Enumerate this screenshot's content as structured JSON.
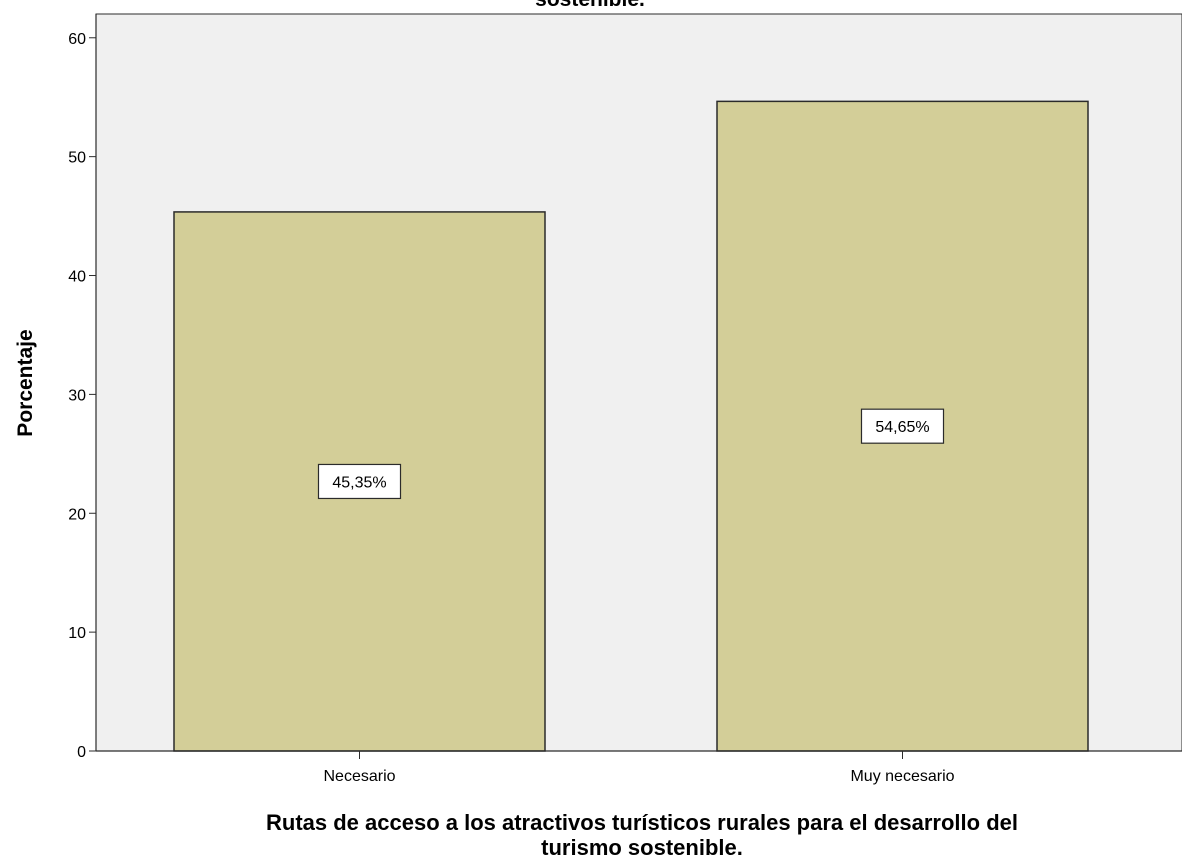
{
  "chart_data": {
    "type": "bar",
    "title": "sostenible.",
    "categories": [
      "Necesario",
      "Muy necesario"
    ],
    "values": [
      45.35,
      54.65
    ],
    "data_labels": [
      "45,35%",
      "54,65%"
    ],
    "xlabel_lines": [
      "Rutas de acceso a los atractivos turísticos rurales para el desarrollo del",
      "turismo sostenible."
    ],
    "ylabel": "Porcentaje",
    "ylim": [
      0,
      62
    ],
    "yticks": [
      0,
      10,
      20,
      30,
      40,
      50,
      60
    ],
    "grid": false,
    "legend": "none",
    "colors": {
      "bar_fill": "#d3ce98",
      "bar_stroke": "#2b2b2b",
      "plot_background": "#f0f0f0",
      "label_box_fill": "#ffffff"
    }
  }
}
